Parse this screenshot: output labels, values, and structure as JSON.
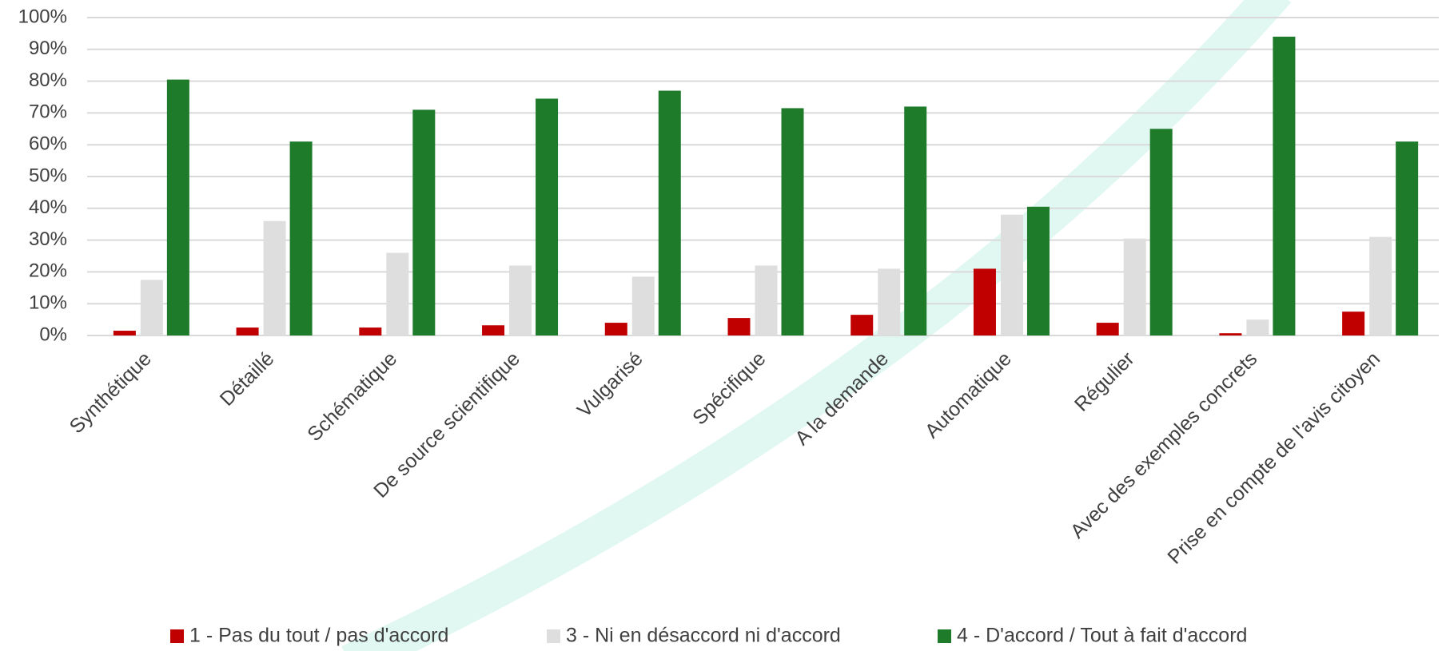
{
  "chart_data": {
    "type": "bar",
    "categories": [
      "Synthétique",
      "Détaillé",
      "Schématique",
      "De source scientifique",
      "Vulgarisé",
      "Spécifique",
      "A la demande",
      "Automatique",
      "Régulier",
      "Avec des exemples concrets",
      "Prise en compte de l'avis citoyen"
    ],
    "series": [
      {
        "name": "1 - Pas du tout / pas d'accord",
        "color": "#c00000",
        "values": [
          1.5,
          2.5,
          2.5,
          3.2,
          4,
          5.5,
          6.5,
          21,
          4,
          0.7,
          7.5
        ]
      },
      {
        "name": "3 - Ni en désaccord ni d'accord",
        "color": "#dedede",
        "values": [
          17.5,
          36,
          26,
          22,
          18.5,
          22,
          21,
          38,
          30.5,
          5,
          31
        ]
      },
      {
        "name": "4 - D'accord / Tout à fait d'accord",
        "color": "#1e7b2a",
        "values": [
          80.5,
          61,
          71,
          74.5,
          77,
          71.5,
          72,
          40.5,
          65,
          94,
          61
        ]
      }
    ],
    "ylim": [
      0,
      100
    ],
    "yticks": [
      {
        "value": 0,
        "label": "0%"
      },
      {
        "value": 10,
        "label": "10%"
      },
      {
        "value": 20,
        "label": "20%"
      },
      {
        "value": 30,
        "label": "30%"
      },
      {
        "value": 40,
        "label": "40%"
      },
      {
        "value": 50,
        "label": "50%"
      },
      {
        "value": 60,
        "label": "60%"
      },
      {
        "value": 70,
        "label": "70%"
      },
      {
        "value": 80,
        "label": "80%"
      },
      {
        "value": 90,
        "label": "90%"
      },
      {
        "value": 100,
        "label": "100%"
      }
    ],
    "grid": true,
    "legend": "bottom"
  }
}
